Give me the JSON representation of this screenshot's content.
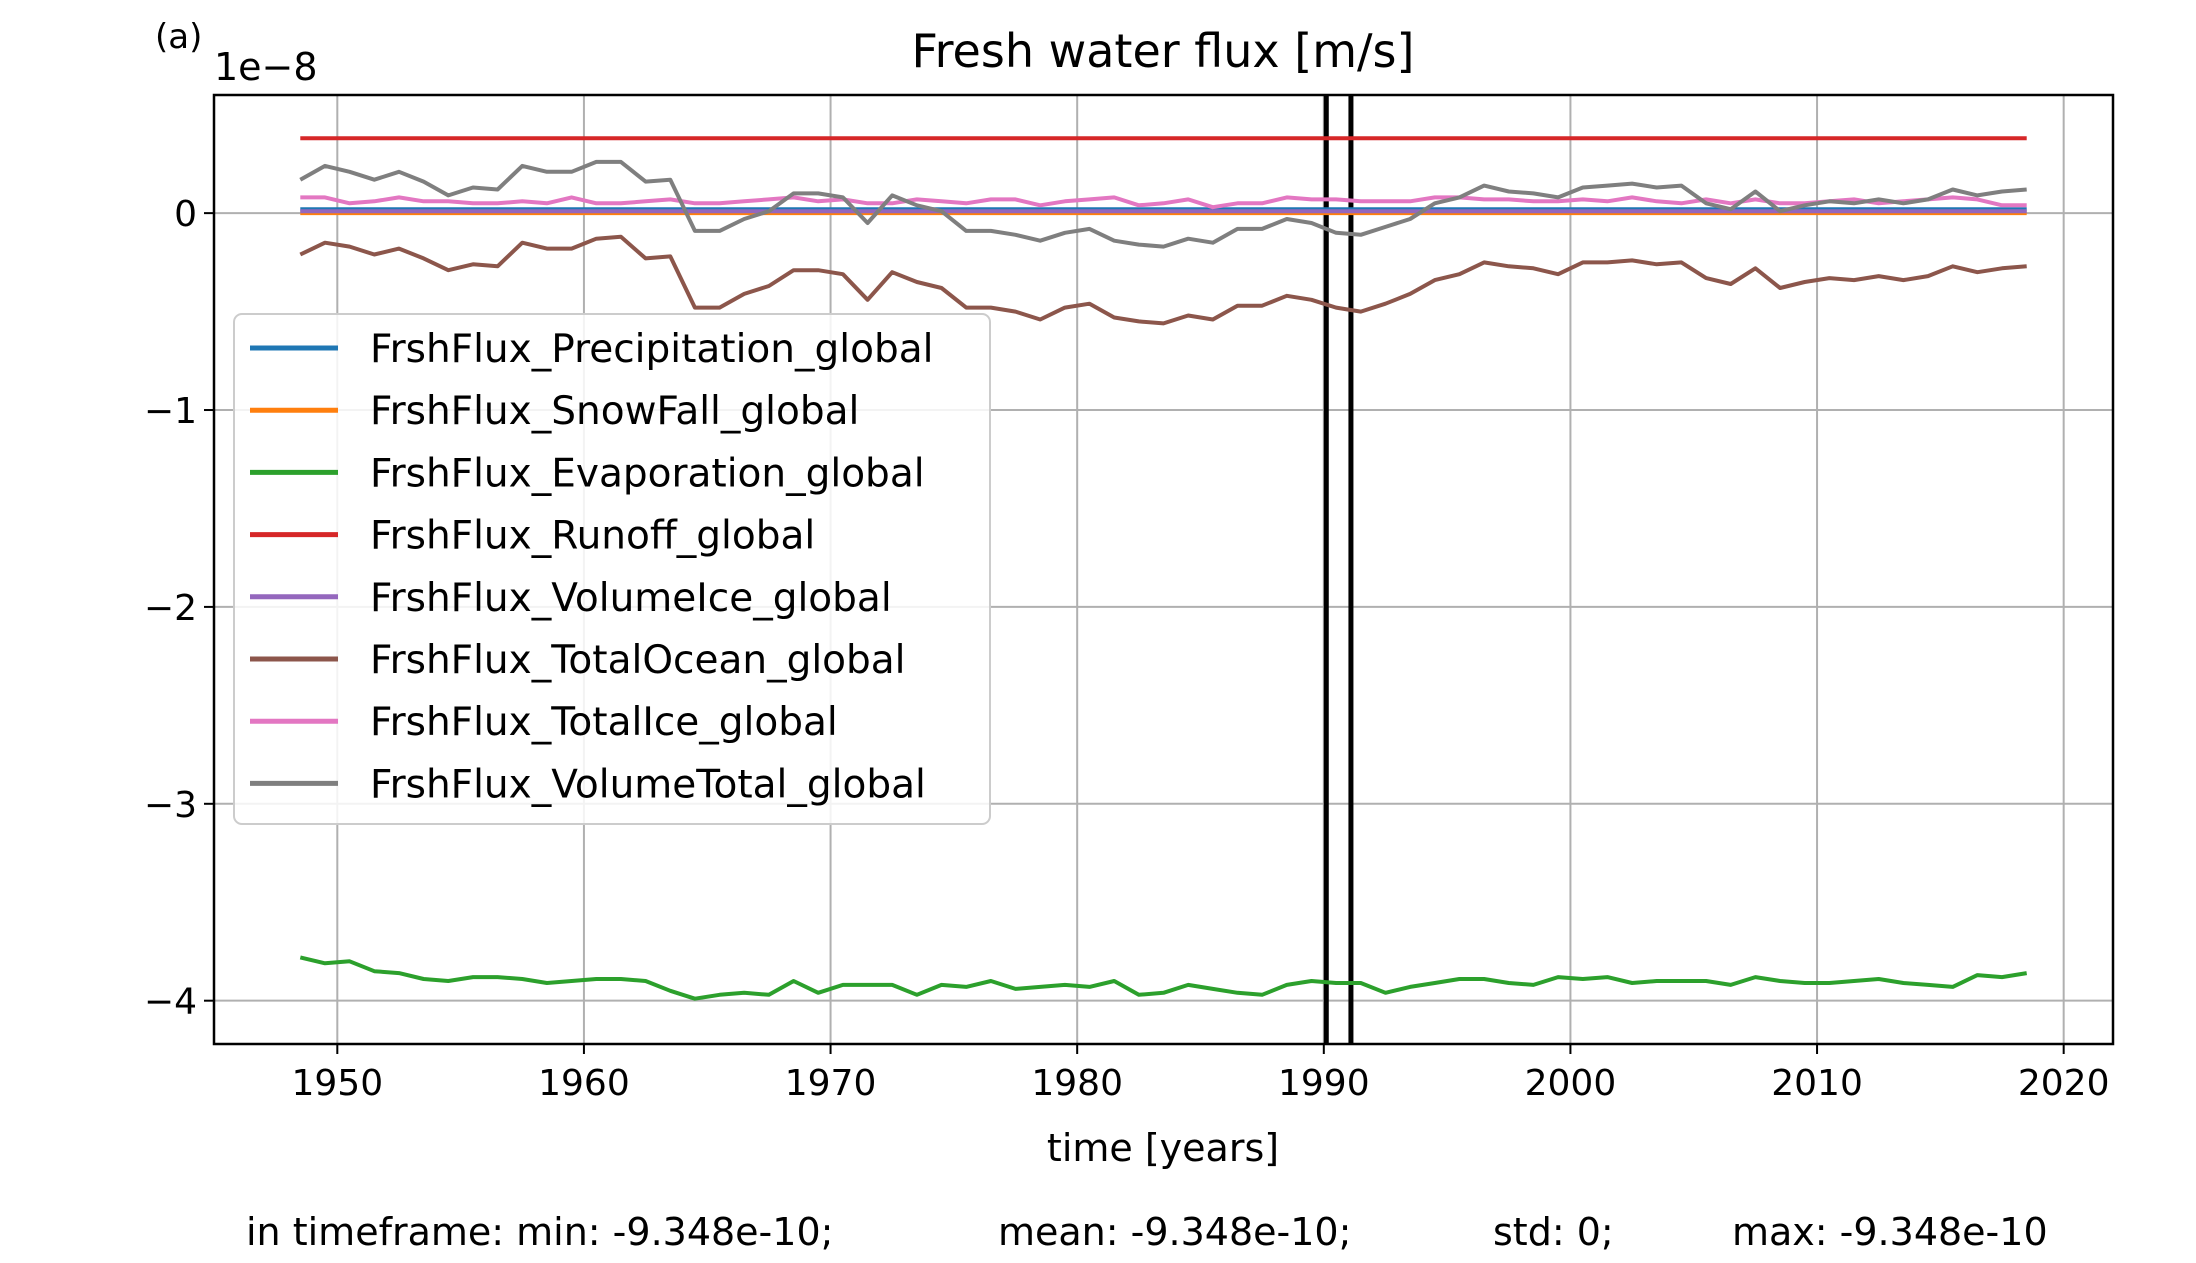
{
  "panel_label": "(a)",
  "footer": {
    "min": "in timeframe: min: -9.348e-10;",
    "mean": "mean: -9.348e-10;",
    "std": "std: 0;",
    "max": "max: -9.348e-10"
  },
  "chart_data": {
    "type": "line",
    "title": "Fresh water flux [m/s]",
    "xlabel": "time [years]",
    "ylabel": "",
    "y_offset_label": "1e−8",
    "y_scale": 1e-08,
    "xlim": [
      1945,
      2022
    ],
    "ylim": [
      -4.22,
      0.6
    ],
    "xticks": [
      1950,
      1960,
      1970,
      1980,
      1990,
      2000,
      2010,
      2020
    ],
    "yticks": [
      0,
      -1,
      -2,
      -3,
      -4
    ],
    "ytick_labels": [
      "0",
      "−1",
      "−2",
      "−3",
      "−4"
    ],
    "grid": true,
    "legend_position": "center-left",
    "vertical_lines": [
      1990.1,
      1991.1
    ],
    "x_start": 1948.5,
    "x_step": 1,
    "series": [
      {
        "name": "FrshFlux_Precipitation_global",
        "color": "#1f77b4",
        "values": [
          0.02,
          0.02,
          0.02,
          0.02,
          0.02,
          0.02,
          0.02,
          0.02,
          0.02,
          0.02,
          0.02,
          0.02,
          0.02,
          0.02,
          0.02,
          0.02,
          0.02,
          0.02,
          0.02,
          0.02,
          0.02,
          0.02,
          0.02,
          0.02,
          0.02,
          0.02,
          0.02,
          0.02,
          0.02,
          0.02,
          0.02,
          0.02,
          0.02,
          0.02,
          0.02,
          0.02,
          0.02,
          0.02,
          0.02,
          0.02,
          0.02,
          0.02,
          0.02,
          0.02,
          0.02,
          0.02,
          0.02,
          0.02,
          0.02,
          0.02,
          0.02,
          0.02,
          0.02,
          0.02,
          0.02,
          0.02,
          0.02,
          0.02,
          0.02,
          0.02,
          0.02,
          0.02,
          0.02,
          0.02,
          0.02,
          0.02,
          0.02,
          0.02,
          0.02,
          0.02,
          0.02
        ]
      },
      {
        "name": "FrshFlux_SnowFall_global",
        "color": "#ff7f0e",
        "values": [
          0.0,
          0.0,
          0.0,
          0.0,
          0.0,
          0.0,
          0.0,
          0.0,
          0.0,
          0.0,
          0.0,
          0.0,
          0.0,
          0.0,
          0.0,
          0.0,
          0.0,
          0.0,
          0.0,
          0.0,
          0.0,
          0.0,
          0.0,
          0.0,
          0.0,
          0.0,
          0.0,
          0.0,
          0.0,
          0.0,
          0.0,
          0.0,
          0.0,
          0.0,
          0.0,
          0.0,
          0.0,
          0.0,
          0.0,
          0.0,
          0.0,
          0.0,
          0.0,
          0.0,
          0.0,
          0.0,
          0.0,
          0.0,
          0.0,
          0.0,
          0.0,
          0.0,
          0.0,
          0.0,
          0.0,
          0.0,
          0.0,
          0.0,
          0.0,
          0.0,
          0.0,
          0.0,
          0.0,
          0.0,
          0.0,
          0.0,
          0.0,
          0.0,
          0.0,
          0.0,
          0.0
        ]
      },
      {
        "name": "FrshFlux_Evaporation_global",
        "color": "#2ca02c",
        "values": [
          -3.78,
          -3.81,
          -3.8,
          -3.85,
          -3.86,
          -3.89,
          -3.9,
          -3.88,
          -3.88,
          -3.89,
          -3.91,
          -3.9,
          -3.89,
          -3.89,
          -3.9,
          -3.95,
          -3.99,
          -3.97,
          -3.96,
          -3.97,
          -3.9,
          -3.96,
          -3.92,
          -3.92,
          -3.92,
          -3.97,
          -3.92,
          -3.93,
          -3.9,
          -3.94,
          -3.93,
          -3.92,
          -3.93,
          -3.9,
          -3.97,
          -3.96,
          -3.92,
          -3.94,
          -3.96,
          -3.97,
          -3.92,
          -3.9,
          -3.91,
          -3.91,
          -3.96,
          -3.93,
          -3.91,
          -3.89,
          -3.89,
          -3.91,
          -3.92,
          -3.88,
          -3.89,
          -3.88,
          -3.91,
          -3.9,
          -3.9,
          -3.9,
          -3.92,
          -3.88,
          -3.9,
          -3.91,
          -3.91,
          -3.9,
          -3.89,
          -3.91,
          -3.92,
          -3.93,
          -3.87,
          -3.88,
          -3.86
        ]
      },
      {
        "name": "FrshFlux_Runoff_global",
        "color": "#d62728",
        "values": [
          0.38,
          0.38,
          0.38,
          0.38,
          0.38,
          0.38,
          0.38,
          0.38,
          0.38,
          0.38,
          0.38,
          0.38,
          0.38,
          0.38,
          0.38,
          0.38,
          0.38,
          0.38,
          0.38,
          0.38,
          0.38,
          0.38,
          0.38,
          0.38,
          0.38,
          0.38,
          0.38,
          0.38,
          0.38,
          0.38,
          0.38,
          0.38,
          0.38,
          0.38,
          0.38,
          0.38,
          0.38,
          0.38,
          0.38,
          0.38,
          0.38,
          0.38,
          0.38,
          0.38,
          0.38,
          0.38,
          0.38,
          0.38,
          0.38,
          0.38,
          0.38,
          0.38,
          0.38,
          0.38,
          0.38,
          0.38,
          0.38,
          0.38,
          0.38,
          0.38,
          0.38,
          0.38,
          0.38,
          0.38,
          0.38,
          0.38,
          0.38,
          0.38,
          0.38,
          0.38,
          0.38
        ]
      },
      {
        "name": "FrshFlux_VolumeIce_global",
        "color": "#9467bd",
        "values": [
          0.01,
          0.01,
          0.01,
          0.01,
          0.01,
          0.01,
          0.01,
          0.01,
          0.01,
          0.01,
          0.01,
          0.01,
          0.01,
          0.01,
          0.01,
          0.01,
          0.01,
          0.01,
          0.01,
          0.01,
          0.01,
          0.01,
          0.01,
          0.01,
          0.01,
          0.01,
          0.01,
          0.01,
          0.01,
          0.01,
          0.01,
          0.01,
          0.01,
          0.01,
          0.01,
          0.01,
          0.01,
          0.01,
          0.01,
          0.01,
          0.01,
          0.01,
          0.01,
          0.01,
          0.01,
          0.01,
          0.01,
          0.01,
          0.01,
          0.01,
          0.01,
          0.01,
          0.01,
          0.01,
          0.01,
          0.01,
          0.01,
          0.01,
          0.01,
          0.01,
          0.01,
          0.01,
          0.01,
          0.01,
          0.01,
          0.01,
          0.01,
          0.01,
          0.01,
          0.01,
          0.01
        ]
      },
      {
        "name": "FrshFlux_TotalOcean_global",
        "color": "#8c564b",
        "values": [
          -0.21,
          -0.15,
          -0.17,
          -0.21,
          -0.18,
          -0.23,
          -0.29,
          -0.26,
          -0.27,
          -0.15,
          -0.18,
          -0.18,
          -0.13,
          -0.12,
          -0.23,
          -0.22,
          -0.48,
          -0.48,
          -0.41,
          -0.37,
          -0.29,
          -0.29,
          -0.31,
          -0.44,
          -0.3,
          -0.35,
          -0.38,
          -0.48,
          -0.48,
          -0.5,
          -0.54,
          -0.48,
          -0.46,
          -0.53,
          -0.55,
          -0.56,
          -0.52,
          -0.54,
          -0.47,
          -0.47,
          -0.42,
          -0.44,
          -0.48,
          -0.5,
          -0.46,
          -0.41,
          -0.34,
          -0.31,
          -0.25,
          -0.27,
          -0.28,
          -0.31,
          -0.25,
          -0.25,
          -0.24,
          -0.26,
          -0.25,
          -0.33,
          -0.36,
          -0.28,
          -0.38,
          -0.35,
          -0.33,
          -0.34,
          -0.32,
          -0.34,
          -0.32,
          -0.27,
          -0.3,
          -0.28,
          -0.27
        ]
      },
      {
        "name": "FrshFlux_TotalIce_global",
        "color": "#e377c2",
        "values": [
          0.08,
          0.08,
          0.05,
          0.06,
          0.08,
          0.06,
          0.06,
          0.05,
          0.05,
          0.06,
          0.05,
          0.08,
          0.05,
          0.05,
          0.06,
          0.07,
          0.05,
          0.05,
          0.06,
          0.07,
          0.08,
          0.06,
          0.07,
          0.05,
          0.05,
          0.07,
          0.06,
          0.05,
          0.07,
          0.07,
          0.04,
          0.06,
          0.07,
          0.08,
          0.04,
          0.05,
          0.07,
          0.03,
          0.05,
          0.05,
          0.08,
          0.07,
          0.07,
          0.06,
          0.06,
          0.06,
          0.08,
          0.08,
          0.07,
          0.07,
          0.06,
          0.06,
          0.07,
          0.06,
          0.08,
          0.06,
          0.05,
          0.07,
          0.05,
          0.07,
          0.05,
          0.05,
          0.06,
          0.07,
          0.05,
          0.06,
          0.07,
          0.08,
          0.07,
          0.04,
          0.04
        ]
      },
      {
        "name": "FrshFlux_VolumeTotal_global",
        "color": "#7f7f7f",
        "values": [
          0.17,
          0.24,
          0.21,
          0.17,
          0.21,
          0.16,
          0.09,
          0.13,
          0.12,
          0.24,
          0.21,
          0.21,
          0.26,
          0.26,
          0.16,
          0.17,
          -0.09,
          -0.09,
          -0.03,
          0.01,
          0.1,
          0.1,
          0.08,
          -0.05,
          0.09,
          0.04,
          0.01,
          -0.09,
          -0.09,
          -0.11,
          -0.14,
          -0.1,
          -0.08,
          -0.14,
          -0.16,
          -0.17,
          -0.13,
          -0.15,
          -0.08,
          -0.08,
          -0.03,
          -0.05,
          -0.1,
          -0.11,
          -0.07,
          -0.03,
          0.05,
          0.08,
          0.14,
          0.11,
          0.1,
          0.08,
          0.13,
          0.14,
          0.15,
          0.13,
          0.14,
          0.05,
          0.02,
          0.11,
          0.01,
          0.04,
          0.06,
          0.05,
          0.07,
          0.05,
          0.07,
          0.12,
          0.09,
          0.11,
          0.12
        ]
      }
    ]
  }
}
